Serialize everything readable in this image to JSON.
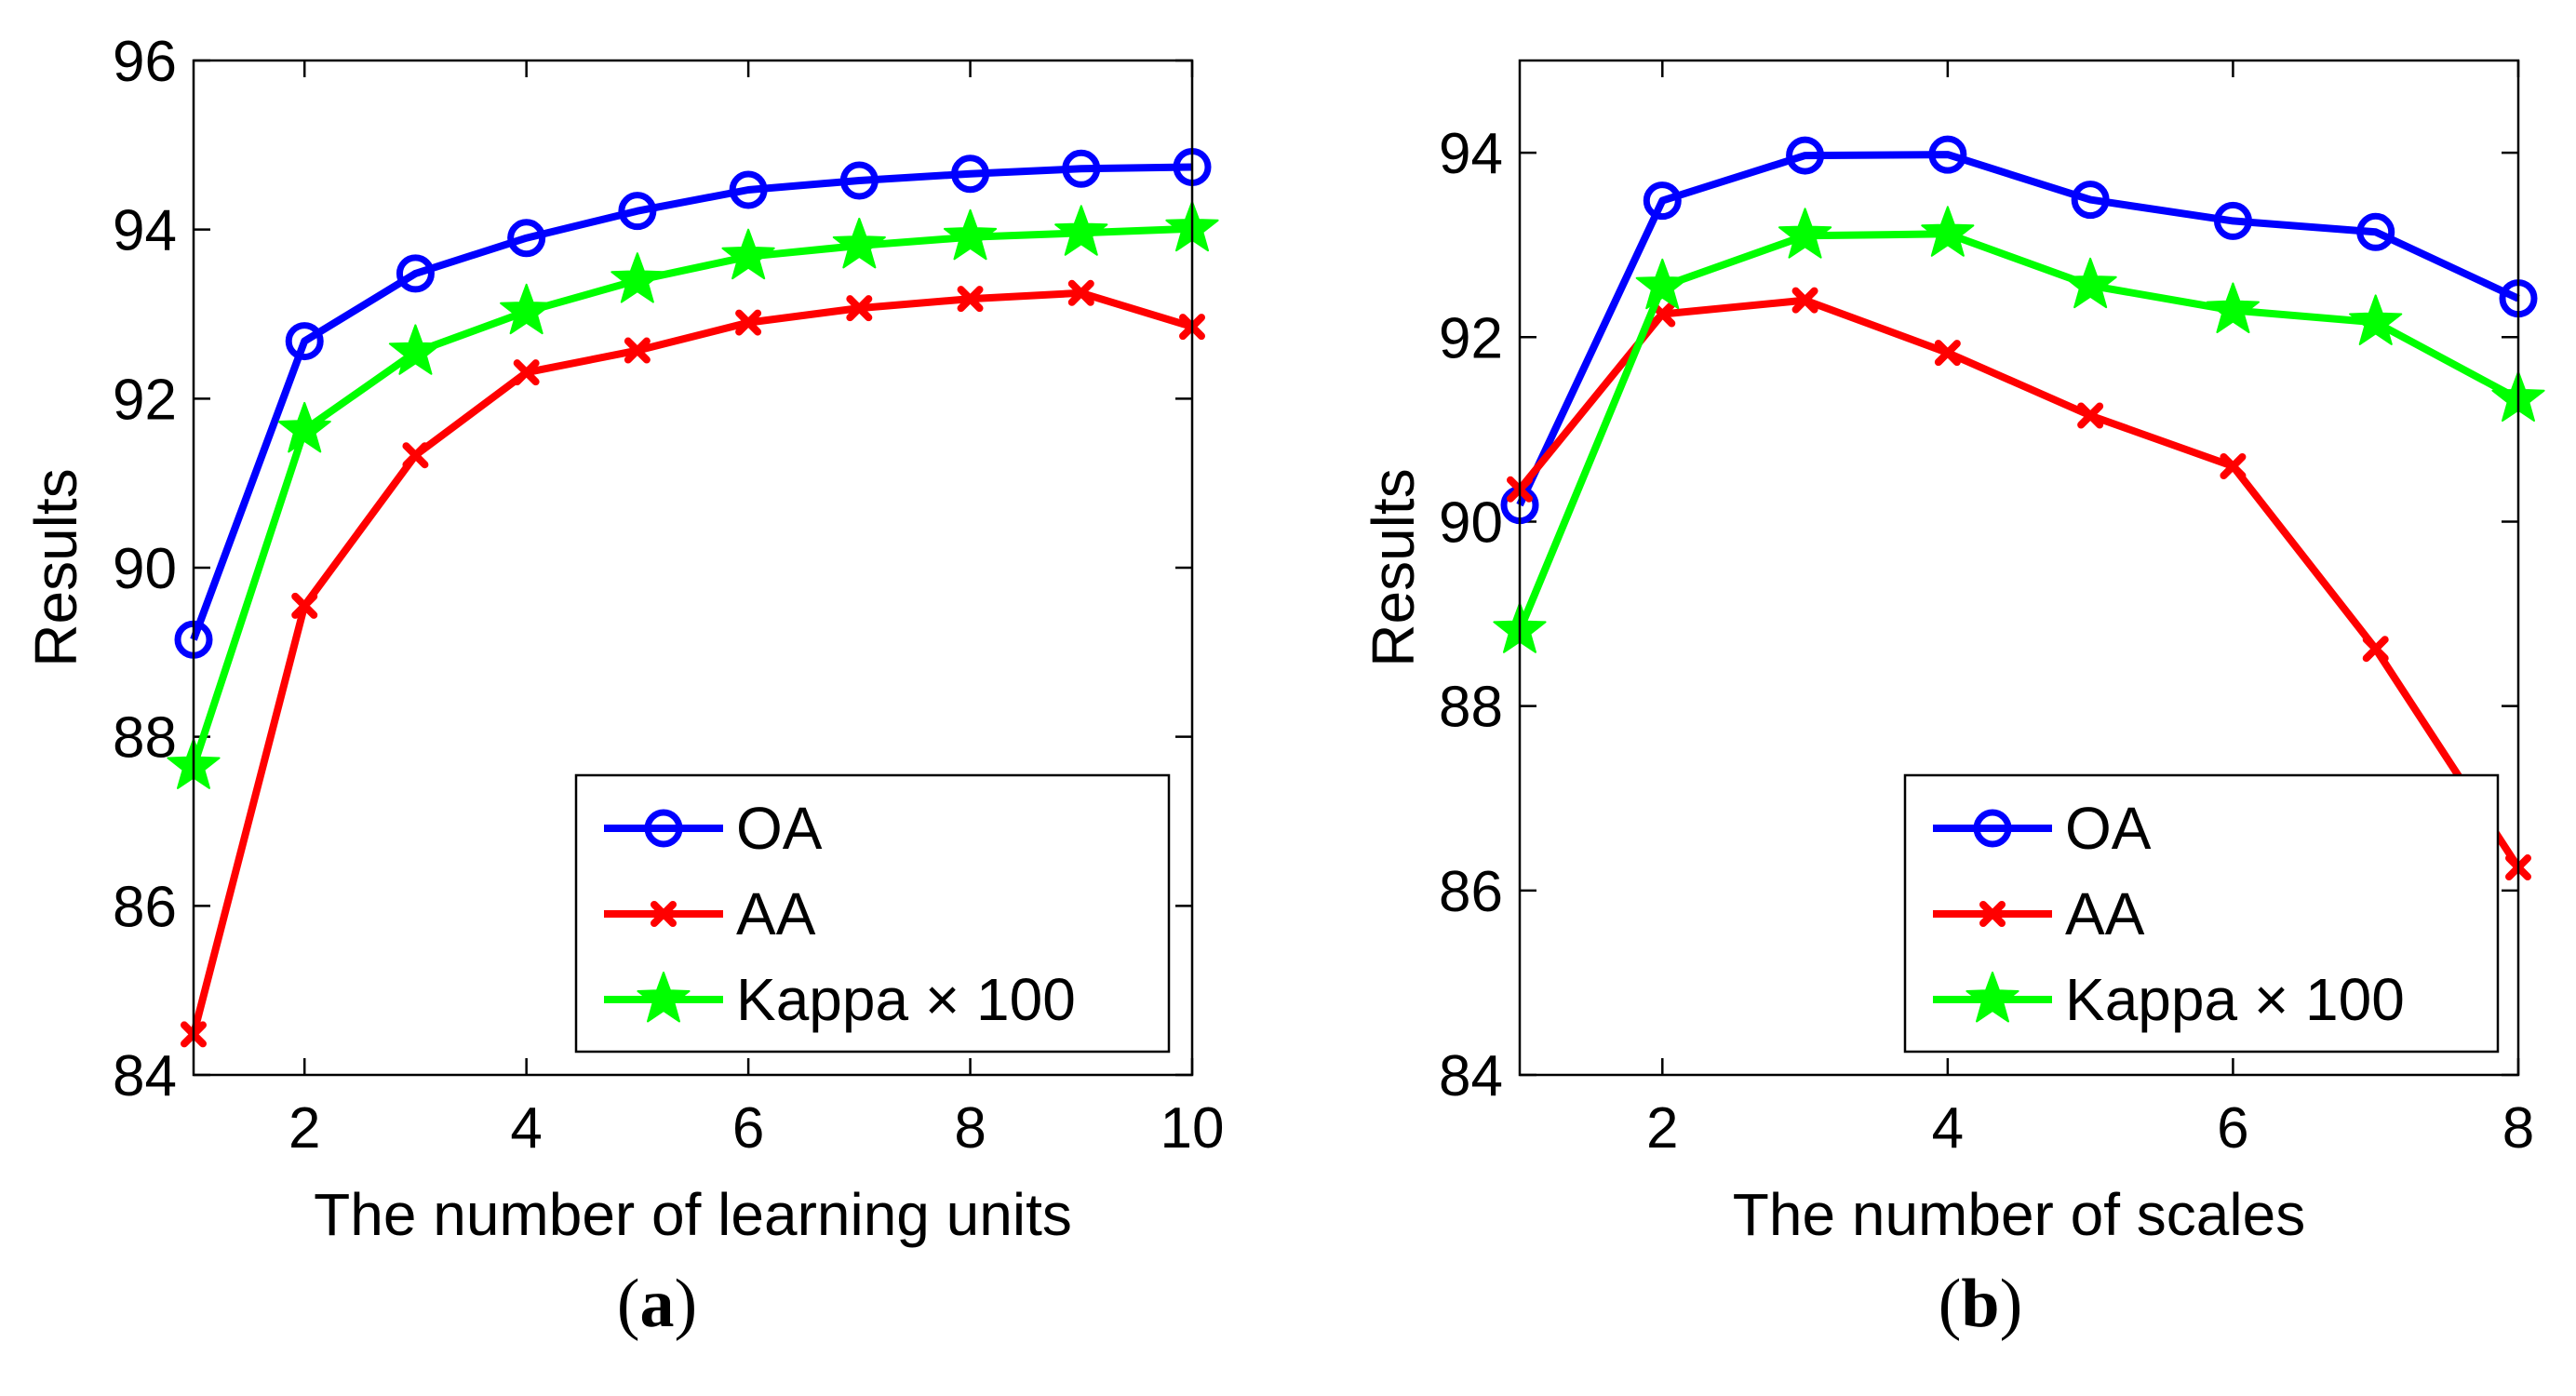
{
  "chart_data": [
    {
      "type": "line",
      "panel_label": "(a)",
      "xlabel": "The number of learning units",
      "ylabel": "Results",
      "xlim": [
        1,
        10
      ],
      "ylim": [
        84,
        96
      ],
      "xticks": [
        2,
        4,
        6,
        8,
        10
      ],
      "yticks": [
        84,
        86,
        88,
        90,
        92,
        94,
        96
      ],
      "x": [
        1,
        2,
        3,
        4,
        5,
        6,
        7,
        8,
        9,
        10
      ],
      "legend_position": "bottom-right",
      "series": [
        {
          "name": "OA",
          "color": "#0000ff",
          "marker": "circle",
          "values": [
            89.15,
            92.68,
            93.48,
            93.9,
            94.22,
            94.47,
            94.58,
            94.66,
            94.72,
            94.74
          ]
        },
        {
          "name": "AA",
          "color": "#ff0000",
          "marker": "x",
          "values": [
            84.48,
            89.55,
            91.33,
            92.31,
            92.57,
            92.9,
            93.07,
            93.18,
            93.25,
            92.85
          ]
        },
        {
          "name": "Kappa × 100",
          "color": "#00ff00",
          "marker": "star",
          "values": [
            87.65,
            91.63,
            92.55,
            93.03,
            93.4,
            93.68,
            93.81,
            93.91,
            93.96,
            94.01
          ]
        }
      ]
    },
    {
      "type": "line",
      "panel_label": "(b)",
      "xlabel": "The number of scales",
      "ylabel": "Results",
      "xlim": [
        1,
        8
      ],
      "ylim": [
        84,
        95
      ],
      "xticks": [
        2,
        4,
        6,
        8
      ],
      "yticks": [
        84,
        86,
        88,
        90,
        92,
        94
      ],
      "x": [
        1,
        2,
        3,
        4,
        5,
        6,
        7,
        8
      ],
      "legend_position": "bottom-right",
      "series": [
        {
          "name": "OA",
          "color": "#0000ff",
          "marker": "circle",
          "values": [
            90.18,
            93.48,
            93.97,
            93.98,
            93.49,
            93.26,
            93.14,
            92.42
          ]
        },
        {
          "name": "AA",
          "color": "#ff0000",
          "marker": "x",
          "values": [
            90.35,
            92.25,
            92.4,
            91.83,
            91.15,
            90.6,
            88.62,
            86.25
          ]
        },
        {
          "name": "Kappa × 100",
          "color": "#00ff00",
          "marker": "star",
          "values": [
            88.82,
            92.55,
            93.1,
            93.12,
            92.56,
            92.29,
            92.16,
            91.33
          ]
        }
      ]
    }
  ]
}
